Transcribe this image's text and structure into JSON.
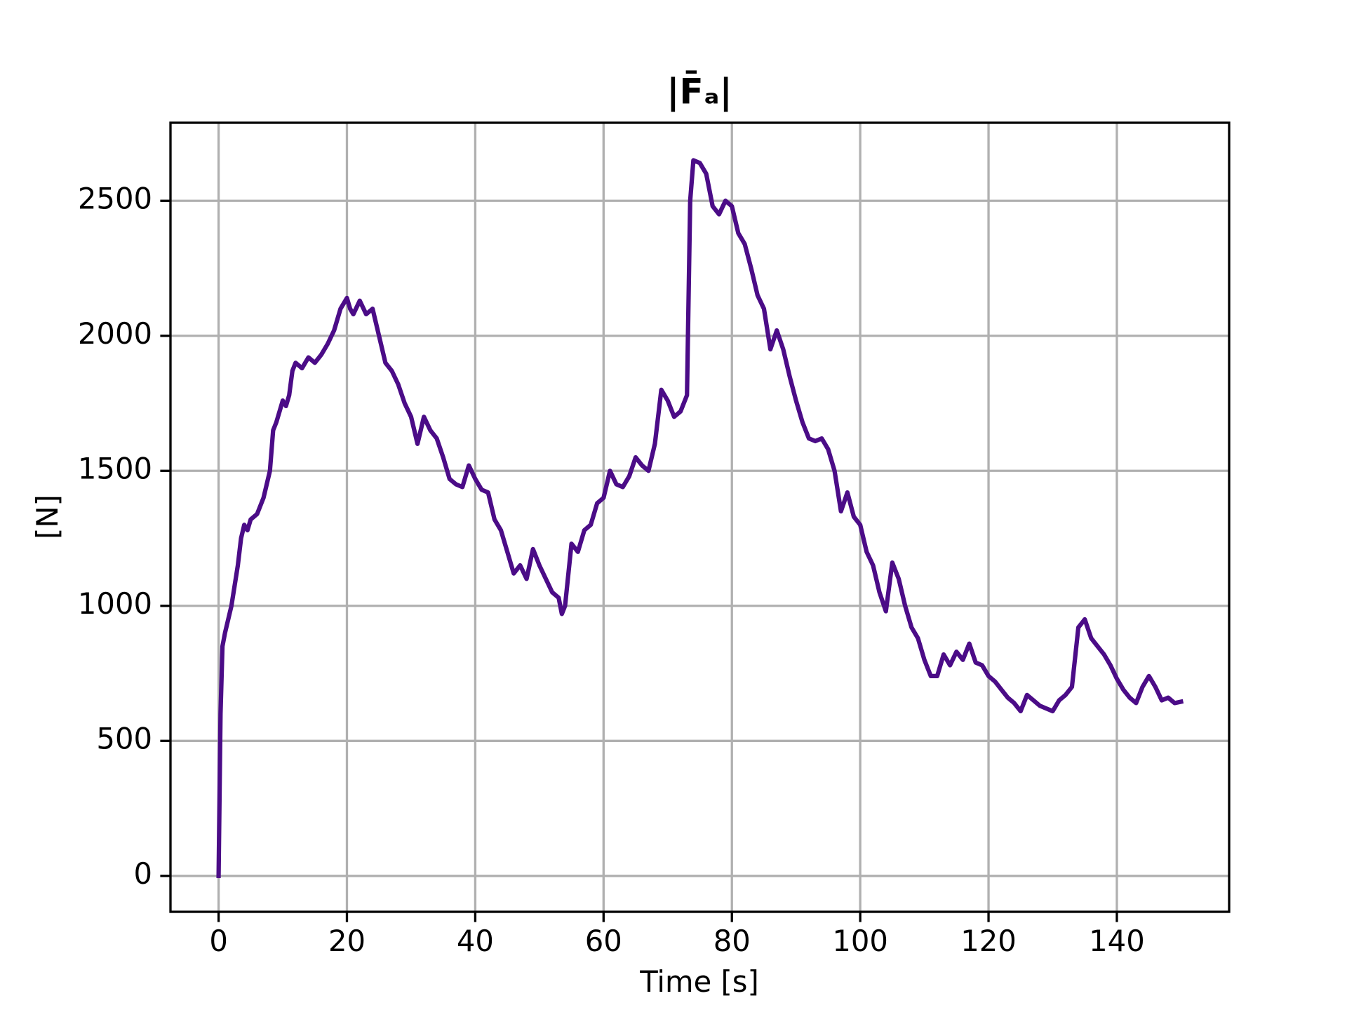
{
  "chart_data": {
    "type": "line",
    "title": "|F̄ₐ|",
    "xlabel": "Time [s]",
    "ylabel": "[N]",
    "x": [
      0,
      0.3,
      0.6,
      1,
      2,
      3,
      3.5,
      4,
      4.5,
      5,
      6,
      7,
      8,
      8.5,
      9,
      10,
      10.5,
      11,
      11.5,
      12,
      13,
      14,
      15,
      16,
      17,
      18,
      19,
      20,
      20.5,
      21,
      22,
      23,
      24,
      25,
      26,
      27,
      28,
      29,
      30,
      31,
      32,
      33,
      34,
      35,
      36,
      37,
      38,
      39,
      40,
      41,
      42,
      43,
      44,
      45,
      46,
      47,
      48,
      49,
      50,
      51,
      52,
      53,
      53.5,
      54,
      55,
      56,
      57,
      58,
      59,
      60,
      61,
      62,
      63,
      64,
      65,
      66,
      67,
      68,
      69,
      70,
      71,
      72,
      73,
      73.5,
      74,
      75,
      76,
      77,
      78,
      79,
      80,
      81,
      82,
      83,
      84,
      85,
      86,
      87,
      88,
      89,
      90,
      91,
      92,
      93,
      94,
      95,
      96,
      97,
      98,
      99,
      100,
      101,
      102,
      103,
      104,
      105,
      106,
      107,
      108,
      109,
      110,
      111,
      112,
      113,
      114,
      115,
      116,
      117,
      118,
      119,
      120,
      121,
      122,
      123,
      124,
      125,
      126,
      127,
      128,
      129,
      130,
      131,
      132,
      133,
      134,
      135,
      136,
      137,
      138,
      139,
      140,
      141,
      142,
      143,
      144,
      145,
      146,
      147,
      148,
      149,
      150
    ],
    "series": [
      {
        "name": "|F̄ₐ|",
        "color": "#4b0c87",
        "values": [
          0,
          600,
          850,
          900,
          1000,
          1150,
          1250,
          1300,
          1280,
          1320,
          1340,
          1400,
          1500,
          1650,
          1680,
          1760,
          1740,
          1780,
          1870,
          1900,
          1880,
          1920,
          1900,
          1930,
          1970,
          2020,
          2100,
          2140,
          2100,
          2080,
          2130,
          2080,
          2100,
          2000,
          1900,
          1870,
          1820,
          1750,
          1700,
          1600,
          1700,
          1650,
          1620,
          1550,
          1470,
          1450,
          1440,
          1520,
          1470,
          1430,
          1420,
          1320,
          1280,
          1200,
          1120,
          1150,
          1100,
          1210,
          1150,
          1100,
          1050,
          1030,
          970,
          1000,
          1230,
          1200,
          1280,
          1300,
          1380,
          1400,
          1500,
          1450,
          1440,
          1480,
          1550,
          1520,
          1500,
          1600,
          1800,
          1760,
          1700,
          1720,
          1780,
          2500,
          2650,
          2640,
          2600,
          2480,
          2450,
          2500,
          2480,
          2380,
          2340,
          2250,
          2150,
          2100,
          1950,
          2020,
          1950,
          1850,
          1760,
          1680,
          1620,
          1610,
          1620,
          1580,
          1500,
          1350,
          1420,
          1330,
          1300,
          1200,
          1150,
          1050,
          980,
          1160,
          1100,
          1000,
          920,
          880,
          800,
          740,
          740,
          820,
          780,
          830,
          800,
          860,
          790,
          780,
          740,
          720,
          690,
          660,
          640,
          610,
          670,
          650,
          630,
          620,
          610,
          650,
          670,
          700,
          920,
          950,
          880,
          850,
          820,
          780,
          730,
          690,
          660,
          640,
          700,
          740,
          700,
          650,
          660,
          640,
          645
        ]
      }
    ],
    "xlim": [
      -7.5,
      157.5
    ],
    "ylim": [
      -133,
      2789
    ],
    "xticks": [
      0,
      20,
      40,
      60,
      80,
      100,
      120,
      140
    ],
    "yticks": [
      0,
      500,
      1000,
      1500,
      2000,
      2500
    ],
    "grid": true
  }
}
